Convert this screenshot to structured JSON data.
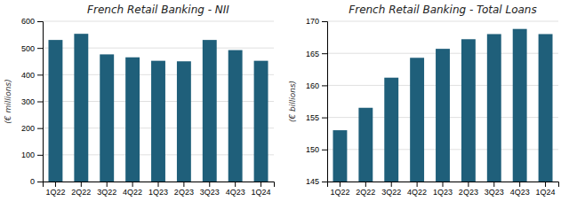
{
  "chart_data": [
    {
      "type": "bar",
      "title": "French Retail Banking - NII",
      "ylabel": "(€ millions)",
      "categories": [
        "1Q22",
        "2Q22",
        "3Q22",
        "4Q22",
        "1Q23",
        "2Q23",
        "3Q23",
        "4Q23",
        "1Q24"
      ],
      "values": [
        530,
        553,
        476,
        465,
        452,
        450,
        530,
        492,
        452
      ],
      "color": "#1F5F7A",
      "ylim": [
        0,
        600
      ],
      "yticks": [
        0,
        100,
        200,
        300,
        400,
        500,
        600
      ],
      "grid": true
    },
    {
      "type": "bar",
      "title": "French Retail Banking - Total Loans",
      "ylabel": "(€ billions)",
      "categories": [
        "1Q22",
        "2Q22",
        "3Q22",
        "4Q22",
        "1Q23",
        "2Q23",
        "3Q23",
        "4Q23",
        "1Q24"
      ],
      "values": [
        153,
        156.5,
        161.2,
        164.3,
        165.7,
        167.2,
        168.0,
        168.8,
        168.0
      ],
      "color": "#1F5F7A",
      "ylim": [
        145,
        170
      ],
      "yticks": [
        145,
        150,
        155,
        160,
        165,
        170
      ],
      "grid": true
    }
  ]
}
